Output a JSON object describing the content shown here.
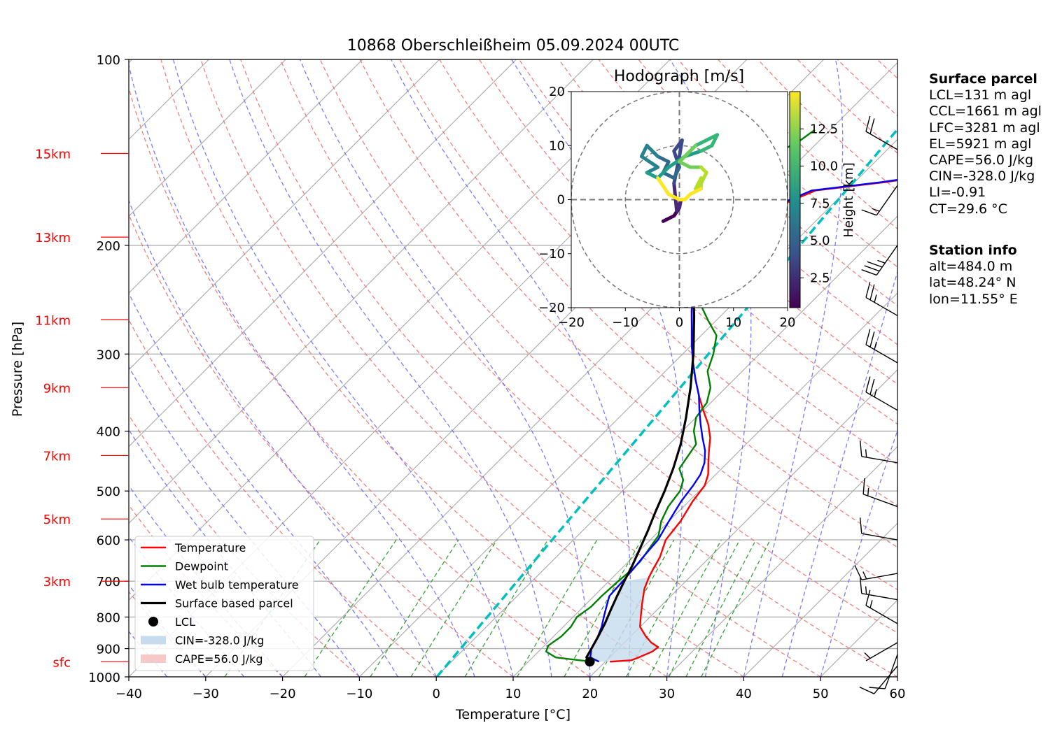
{
  "chart_data": {
    "type": "line",
    "title": "10868 Oberschleißheim 05.09.2024 00UTC",
    "xlabel": "Temperature [°C]",
    "ylabel": "Pressure [hPa]",
    "xlim": [
      -40,
      60
    ],
    "ylim": [
      1000,
      100
    ],
    "y_scale": "log",
    "x_ticks": [
      "−40",
      "−30",
      "−20",
      "−10",
      "0",
      "10",
      "20",
      "30",
      "40",
      "50",
      "60"
    ],
    "x_tick_values": [
      -40,
      -30,
      -20,
      -10,
      0,
      10,
      20,
      30,
      40,
      50,
      60
    ],
    "y_ticks": [
      "100",
      "200",
      "300",
      "400",
      "500",
      "600",
      "700",
      "800",
      "900",
      "1000"
    ],
    "y_tick_values": [
      100,
      200,
      300,
      400,
      500,
      600,
      700,
      800,
      900,
      1000
    ],
    "height_markers": [
      {
        "label": "sfc",
        "p": 945
      },
      {
        "label": "3km",
        "p": 700
      },
      {
        "label": "5km",
        "p": 555
      },
      {
        "label": "7km",
        "p": 438
      },
      {
        "label": "9km",
        "p": 340
      },
      {
        "label": "11km",
        "p": 264
      },
      {
        "label": "13km",
        "p": 194
      },
      {
        "label": "15km",
        "p": 142
      }
    ],
    "grid": true,
    "legend_position": "lower-left",
    "legend": [
      {
        "label": "Temperature",
        "color": "#ff0000",
        "kind": "line"
      },
      {
        "label": "Dewpoint",
        "color": "#008000",
        "kind": "line"
      },
      {
        "label": "Wet bulb temperature",
        "color": "#0000ff",
        "kind": "line"
      },
      {
        "label": "Surface based parcel",
        "color": "#000000",
        "kind": "line"
      },
      {
        "label": "LCL",
        "color": "#000000",
        "kind": "dot"
      },
      {
        "label": "CIN=-328.0 J/kg",
        "color": "#c6dbed",
        "kind": "patch"
      },
      {
        "label": "CAPE=56.0 J/kg",
        "color": "#f6c8c8",
        "kind": "patch"
      }
    ],
    "series": [
      {
        "name": "Temperature",
        "color": "#ff0000",
        "points": [
          [
            945,
            20.6
          ],
          [
            940,
            23.2
          ],
          [
            930,
            23.8
          ],
          [
            910,
            24.8
          ],
          [
            895,
            25.0
          ],
          [
            880,
            23.5
          ],
          [
            860,
            22
          ],
          [
            830,
            20
          ],
          [
            800,
            18.8
          ],
          [
            760,
            17.2
          ],
          [
            720,
            15.6
          ],
          [
            690,
            14.7
          ],
          [
            670,
            14.2
          ],
          [
            640,
            13.5
          ],
          [
            600,
            12
          ],
          [
            560,
            11.5
          ],
          [
            520,
            10.5
          ],
          [
            490,
            10
          ],
          [
            470,
            9.0
          ],
          [
            450,
            7.5
          ],
          [
            430,
            6
          ],
          [
            410,
            4.5
          ],
          [
            390,
            2.5
          ],
          [
            370,
            0
          ],
          [
            350,
            -2.5
          ],
          [
            330,
            -5
          ],
          [
            310,
            -7.5
          ],
          [
            290,
            -10
          ],
          [
            270,
            -12.5
          ],
          [
            255,
            -14.5
          ],
          [
            240,
            -16.5
          ],
          [
            230,
            -17.5
          ],
          [
            220,
            -18
          ],
          [
            210,
            -18.5
          ],
          [
            200,
            -19
          ],
          [
            190,
            -18.5
          ],
          [
            180,
            -17.5
          ],
          [
            170,
            -16
          ],
          [
            163,
            -14
          ],
          [
            158,
            -6
          ],
          [
            155,
            -2
          ],
          [
            150,
            0
          ],
          [
            146,
            1.5
          ],
          [
            142,
            3.5
          ],
          [
            138,
            4.5
          ]
        ]
      },
      {
        "name": "Dewpoint",
        "color": "#008000",
        "points": [
          [
            945,
            18.5
          ],
          [
            940,
            16.5
          ],
          [
            930,
            13
          ],
          [
            920,
            12
          ],
          [
            910,
            11
          ],
          [
            890,
            10.5
          ],
          [
            860,
            11
          ],
          [
            830,
            11
          ],
          [
            800,
            10.5
          ],
          [
            770,
            11
          ],
          [
            740,
            11
          ],
          [
            700,
            11.2
          ],
          [
            670,
            11.5
          ],
          [
            650,
            11.5
          ],
          [
            620,
            11
          ],
          [
            590,
            10.5
          ],
          [
            560,
            9
          ],
          [
            530,
            8
          ],
          [
            500,
            7.5
          ],
          [
            480,
            6.5
          ],
          [
            460,
            4.5
          ],
          [
            440,
            4
          ],
          [
            420,
            3.5
          ],
          [
            400,
            1.5
          ],
          [
            380,
            0
          ],
          [
            360,
            -0.5
          ],
          [
            340,
            -2
          ],
          [
            320,
            -4.5
          ],
          [
            300,
            -6
          ],
          [
            280,
            -8
          ],
          [
            265,
            -11
          ],
          [
            250,
            -14
          ],
          [
            240,
            -17
          ],
          [
            230,
            -19
          ],
          [
            220,
            -19.5
          ],
          [
            210,
            -21
          ],
          [
            200,
            -22
          ],
          [
            190,
            -21.5
          ],
          [
            180,
            -22
          ],
          [
            170,
            -20.5
          ],
          [
            165,
            -23
          ],
          [
            160,
            -25
          ],
          [
            150,
            -24.5
          ],
          [
            140,
            -23.5
          ],
          [
            135,
            -22.5
          ],
          [
            130,
            -22
          ]
        ]
      },
      {
        "name": "Wet bulb temperature",
        "color": "#0000ff",
        "points": [
          [
            945,
            19.2
          ],
          [
            930,
            17.5
          ],
          [
            900,
            16.5
          ],
          [
            870,
            16
          ],
          [
            830,
            15
          ],
          [
            800,
            14
          ],
          [
            770,
            13
          ],
          [
            740,
            12
          ],
          [
            700,
            11.8
          ],
          [
            670,
            11.6
          ],
          [
            640,
            11.3
          ],
          [
            600,
            11
          ],
          [
            560,
            10
          ],
          [
            520,
            9
          ],
          [
            490,
            8.5
          ],
          [
            470,
            8
          ],
          [
            450,
            7
          ],
          [
            430,
            5.5
          ],
          [
            410,
            3.5
          ],
          [
            390,
            1.5
          ],
          [
            370,
            -0.5
          ],
          [
            350,
            -2.5
          ],
          [
            330,
            -5
          ],
          [
            310,
            -7.5
          ],
          [
            290,
            -10
          ],
          [
            270,
            -12.5
          ],
          [
            255,
            -14.5
          ],
          [
            240,
            -16.5
          ],
          [
            230,
            -17.5
          ],
          [
            220,
            -18
          ],
          [
            210,
            -18.5
          ],
          [
            200,
            -19.5
          ],
          [
            190,
            -18.5
          ],
          [
            180,
            -17.5
          ],
          [
            170,
            -16.5
          ],
          [
            163,
            -14.5
          ],
          [
            158,
            -6.5
          ],
          [
            155,
            -2.5
          ],
          [
            150,
            -0.5
          ],
          [
            146,
            1
          ],
          [
            142,
            3
          ],
          [
            138,
            4
          ]
        ]
      },
      {
        "name": "Surface based parcel",
        "color": "#000000",
        "points": [
          [
            945,
            18.0
          ],
          [
            930,
            17.0
          ],
          [
            900,
            16.5
          ],
          [
            860,
            15.8
          ],
          [
            820,
            15.0
          ],
          [
            780,
            14.0
          ],
          [
            740,
            13.0
          ],
          [
            700,
            12.0
          ],
          [
            660,
            11.0
          ],
          [
            620,
            9.8
          ],
          [
            580,
            8.5
          ],
          [
            540,
            7.0
          ],
          [
            500,
            5.5
          ],
          [
            460,
            3.7
          ],
          [
            420,
            1.5
          ],
          [
            380,
            -1.3
          ],
          [
            340,
            -4.6
          ],
          [
            300,
            -8.6
          ],
          [
            260,
            -13.5
          ],
          [
            220,
            -19.5
          ],
          [
            190,
            -24.5
          ],
          [
            170,
            -28
          ],
          [
            155,
            -30.5
          ],
          [
            145,
            -32
          ],
          [
            140,
            -32.5
          ]
        ]
      }
    ],
    "lcl": {
      "p": 945,
      "t": 18.0
    },
    "cin_label": "CIN=-328.0 J/kg",
    "cape_label": "CAPE=56.0 J/kg",
    "wind_barbs": [
      {
        "p": 960,
        "speed_kt": 10,
        "dir": 220
      },
      {
        "p": 920,
        "speed_kt": 10,
        "dir": 200
      },
      {
        "p": 880,
        "speed_kt": 5,
        "dir": 240
      },
      {
        "p": 820,
        "speed_kt": 15,
        "dir": 300
      },
      {
        "p": 750,
        "speed_kt": 15,
        "dir": 280
      },
      {
        "p": 680,
        "speed_kt": 15,
        "dir": 260
      },
      {
        "p": 600,
        "speed_kt": 10,
        "dir": 280
      },
      {
        "p": 530,
        "speed_kt": 15,
        "dir": 290
      },
      {
        "p": 450,
        "speed_kt": 15,
        "dir": 280
      },
      {
        "p": 370,
        "speed_kt": 25,
        "dir": 300
      },
      {
        "p": 310,
        "speed_kt": 25,
        "dir": 300
      },
      {
        "p": 260,
        "speed_kt": 25,
        "dir": 300
      },
      {
        "p": 200,
        "speed_kt": 35,
        "dir": 215
      },
      {
        "p": 160,
        "speed_kt": 15,
        "dir": 215
      },
      {
        "p": 140,
        "speed_kt": 20,
        "dir": 300
      }
    ],
    "hodograph": {
      "title": "Hodograph [m/s]",
      "xlim": [
        -20,
        20
      ],
      "ylim": [
        -20,
        20
      ],
      "x_ticks": [
        "−20",
        "−10",
        "0",
        "10",
        "20"
      ],
      "y_ticks": [
        "20",
        "10",
        "0",
        "−10",
        "−20"
      ],
      "tick_values": [
        -20,
        -10,
        0,
        10,
        20
      ],
      "rings": [
        10,
        20
      ],
      "colorbar_label": "Height [km]",
      "colorbar_ticks": [
        "2.5",
        "5.0",
        "7.5",
        "10.0",
        "12.5"
      ],
      "colorbar_values": [
        2.5,
        5.0,
        7.5,
        10.0,
        12.5
      ],
      "colorbar_range": [
        0.5,
        15
      ],
      "points": [
        [
          -3,
          -4,
          0.5
        ],
        [
          -1,
          -3,
          0.9
        ],
        [
          0,
          -1.5,
          1.3
        ],
        [
          0.3,
          0,
          1.7
        ],
        [
          -0.5,
          -2,
          2.1
        ],
        [
          -1,
          3,
          2.5
        ],
        [
          0,
          8,
          3.0
        ],
        [
          0.5,
          11,
          3.4
        ],
        [
          -1,
          9,
          3.8
        ],
        [
          0,
          6,
          4.2
        ],
        [
          -1,
          4,
          4.6
        ],
        [
          -3,
          5,
          5.0
        ],
        [
          -2,
          7,
          5.4
        ],
        [
          -4,
          8,
          5.8
        ],
        [
          -6,
          10,
          6.2
        ],
        [
          -7,
          8,
          6.6
        ],
        [
          -4,
          6,
          7.0
        ],
        [
          -6,
          5,
          7.4
        ],
        [
          -4,
          4,
          7.8
        ],
        [
          -2,
          6,
          8.2
        ],
        [
          1,
          8,
          8.6
        ],
        [
          4,
          9,
          9.0
        ],
        [
          6,
          10,
          9.4
        ],
        [
          7,
          12,
          9.8
        ],
        [
          5,
          11,
          10.2
        ],
        [
          3,
          10,
          10.6
        ],
        [
          1,
          8,
          11.0
        ],
        [
          0,
          7,
          11.4
        ],
        [
          2,
          6,
          11.8
        ],
        [
          4,
          6,
          12.2
        ],
        [
          5,
          5,
          12.6
        ],
        [
          4,
          3,
          13.0
        ],
        [
          3,
          2,
          13.4
        ],
        [
          4,
          4,
          13.7
        ],
        [
          4,
          2,
          14.0
        ],
        [
          2,
          1,
          14.3
        ],
        [
          1,
          0,
          14.6
        ],
        [
          0,
          0,
          14.8
        ],
        [
          -2,
          1,
          15.0
        ],
        [
          -4,
          4,
          15.2
        ]
      ]
    }
  },
  "surface_parcel": {
    "heading": "Surface parcel",
    "lines": [
      "LCL=131 m agl",
      "CCL=1661 m agl",
      "LFC=3281 m agl",
      "EL=5921 m agl",
      "CAPE=56.0 J/kg",
      "CIN=-328.0 J/kg",
      "LI=-0.91",
      "CT=29.6 °C"
    ]
  },
  "station_info": {
    "heading": "Station info",
    "lines": [
      "alt=484.0 m",
      "lat=48.24° N",
      "lon=11.55° E"
    ]
  }
}
